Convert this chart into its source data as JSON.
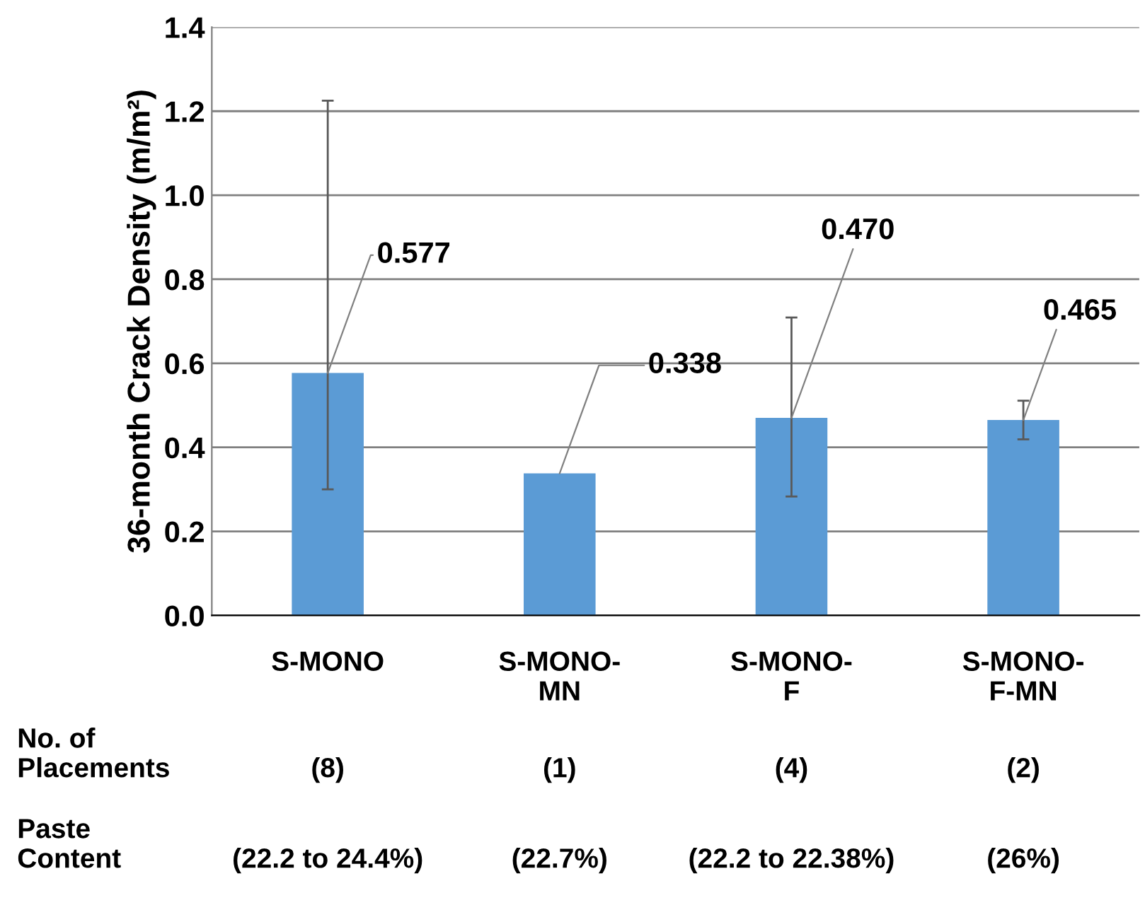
{
  "chart_data": {
    "type": "bar",
    "ylabel": "36-month Crack Density (m/m²)",
    "categories": [
      "S-MONO",
      "S-MONO-\nMN",
      "S-MONO-\nF",
      "S-MONO-\nF-MN"
    ],
    "values": [
      0.577,
      0.338,
      0.47,
      0.465
    ],
    "value_labels": [
      "0.577",
      "0.338",
      "0.470",
      "0.465"
    ],
    "errors": [
      [
        0.3,
        1.225
      ],
      null,
      [
        0.283,
        0.709
      ],
      [
        0.419,
        0.511
      ]
    ],
    "color": "#5b9bd5",
    "ylim": [
      0,
      1.4
    ],
    "yticks": [
      {
        "value": 0,
        "label": "0.0"
      },
      0.2,
      0.4,
      0.6,
      0.8,
      {
        "value": 1.0,
        "label": "1.0"
      },
      1.2,
      1.4
    ],
    "grid": "y",
    "annotations": [
      "No. of\nPlacements",
      "(8)",
      "(1)",
      "(4)",
      "(2)",
      "Paste\nContent",
      "(22.2 to 24.4%)",
      "(22.7%)",
      "(22.2 to 22.38%)",
      "(26%)"
    ]
  }
}
